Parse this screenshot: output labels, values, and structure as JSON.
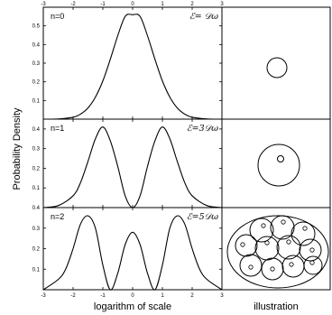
{
  "chart_data": {
    "type": "line",
    "ylabel": "Probability Density",
    "xlabel": "logarithm of scale",
    "illustration_label": "illustration",
    "xlim": [
      -3,
      3
    ],
    "x_ticks": [
      "-3",
      "-2",
      "-1",
      "0",
      "1",
      "2",
      "3"
    ],
    "panels": [
      {
        "label": "n=0",
        "energy": "ℰ= 𝒟ω",
        "ylim": [
          0,
          0.6
        ],
        "y_ticks": [
          "0.1",
          "0.2",
          "0.3",
          "0.4",
          "0.5"
        ],
        "series": [
          {
            "x": [
              -3,
              -2.5,
              -2,
              -1.75,
              -1.5,
              -1.25,
              -1,
              -0.75,
              -0.5,
              -0.25,
              0,
              0.25,
              0.5,
              0.75,
              1,
              1.25,
              1.5,
              1.75,
              2,
              2.5,
              3
            ],
            "y": [
              0.0,
              0.001,
              0.01,
              0.027,
              0.06,
              0.118,
              0.205,
              0.321,
              0.447,
              0.551,
              0.56,
              0.551,
              0.447,
              0.321,
              0.205,
              0.118,
              0.06,
              0.027,
              0.01,
              0.001,
              0.0
            ]
          }
        ]
      },
      {
        "label": "n=1",
        "energy": "ℰ=3𝒟ω",
        "ylim": [
          0,
          0.45
        ],
        "y_ticks": [
          "0.1",
          "0.2",
          "0.3",
          "0.4"
        ],
        "series": [
          {
            "x": [
              -3,
              -2.5,
              -2,
              -1.75,
              -1.5,
              -1.25,
              -1,
              -0.75,
              -0.5,
              -0.25,
              0,
              0.25,
              0.5,
              0.75,
              1,
              1.25,
              1.5,
              1.75,
              2,
              2.5,
              3
            ],
            "y": [
              0.0,
              0.01,
              0.06,
              0.127,
              0.235,
              0.35,
              0.41,
              0.34,
              0.21,
              0.06,
              0.0,
              0.06,
              0.21,
              0.34,
              0.41,
              0.35,
              0.235,
              0.127,
              0.06,
              0.01,
              0.0
            ]
          }
        ]
      },
      {
        "label": "n=2",
        "energy": "ℰ=5𝒟ω",
        "ylim": [
          0,
          0.4
        ],
        "y_ticks": [
          "0.1",
          "0.2",
          "0.3",
          "0.4"
        ],
        "series": [
          {
            "x": [
              -3,
              -2.5,
              -2.25,
              -2,
              -1.75,
              -1.5,
              -1.25,
              -1,
              -0.75,
              -0.5,
              -0.25,
              0,
              0.25,
              0.5,
              0.75,
              1,
              1.25,
              1.5,
              1.75,
              2,
              2.25,
              2.5,
              3
            ],
            "y": [
              0.0,
              0.05,
              0.1,
              0.2,
              0.32,
              0.36,
              0.3,
              0.12,
              0.0,
              0.08,
              0.22,
              0.28,
              0.22,
              0.08,
              0.0,
              0.12,
              0.3,
              0.36,
              0.32,
              0.2,
              0.1,
              0.05,
              0.0
            ]
          }
        ]
      }
    ]
  }
}
